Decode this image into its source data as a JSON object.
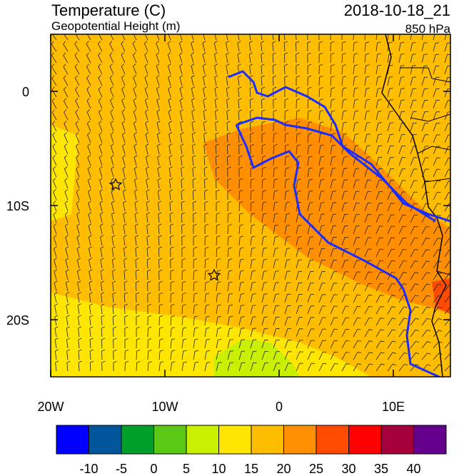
{
  "header": {
    "title": "Temperature (C)",
    "subtitle": "Geopotential Height (m)",
    "time": "2018-10-18_21",
    "level": "850 hPa"
  },
  "map": {
    "xlim": [
      -20,
      15
    ],
    "ylim": [
      -25,
      5
    ],
    "xticks": [
      {
        "value": -20,
        "label": "20W"
      },
      {
        "value": -10,
        "label": "10W"
      },
      {
        "value": 0,
        "label": "0"
      },
      {
        "value": 10,
        "label": "10E"
      }
    ],
    "yticks": [
      {
        "value": 0,
        "label": "0"
      },
      {
        "value": -10,
        "label": "10S"
      },
      {
        "value": -20,
        "label": "20S"
      }
    ]
  },
  "colorbar": {
    "levels": [
      -10,
      -5,
      0,
      5,
      10,
      15,
      20,
      25,
      30,
      35,
      40
    ],
    "colors": [
      "#0000ff",
      "#00559b",
      "#009f2c",
      "#5ac814",
      "#c8f000",
      "#ffe600",
      "#ffbd00",
      "#ff8f00",
      "#ff4a00",
      "#ff0000",
      "#a5003c",
      "#64008c"
    ]
  }
}
